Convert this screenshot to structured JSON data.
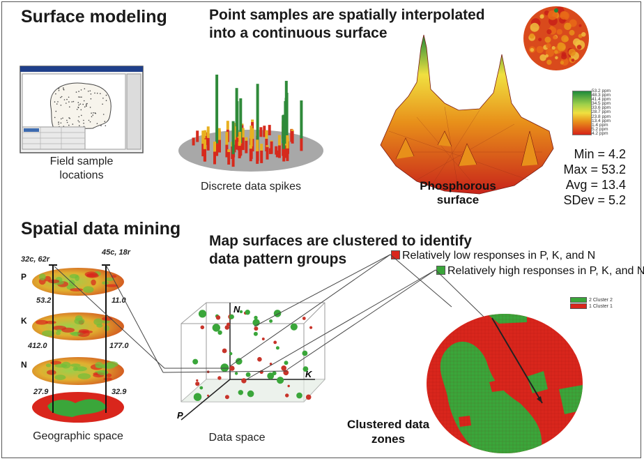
{
  "section1": {
    "title": "Surface modeling",
    "subtitle_line1": "Point samples are spatially interpolated",
    "subtitle_line2": "into a continuous surface",
    "caption_field_line1": "Field sample",
    "caption_field_line2": "locations",
    "caption_spikes": "Discrete data spikes",
    "caption_surface_line1": "Phosphorous",
    "caption_surface_line2": "surface",
    "legend_ticks": [
      "53.2 ppm",
      "48.3 ppm",
      "41.4 ppm",
      "34.5 ppm",
      "33.6 ppm",
      "28.7 ppm",
      "23.8 ppm",
      "13.4 ppm",
      "1.4 ppm",
      "5.2 ppm",
      "4.2 ppm"
    ],
    "stats": {
      "min": "Min = 4.2",
      "max": "Max = 53.2",
      "avg": "Avg = 13.4",
      "sdev": "SDev = 5.2"
    }
  },
  "section2": {
    "title": "Spatial data mining",
    "subtitle_line1": "Map surfaces are clustered to identify",
    "subtitle_line2": "data pattern groups",
    "legend_low": "Relatively low responses in P, K, and N",
    "legend_high": "Relatively high responses in P, K, and N",
    "cluster_legend": [
      "2 Cluster 2",
      "1 Cluster 1"
    ],
    "layers": [
      "P",
      "K",
      "N"
    ],
    "point_left_label": "32c, 62r",
    "point_right_label": "45c, 18r",
    "values_left": [
      "53.2",
      "412.0",
      "27.9"
    ],
    "values_right": [
      "11.0",
      "177.0",
      "32.9"
    ],
    "axes": [
      "N",
      "K",
      "P"
    ],
    "caption_geo": "Geographic space",
    "caption_data": "Data space",
    "caption_zones_line1": "Clustered data",
    "caption_zones_line2": "zones"
  },
  "colors": {
    "low": "#d9261c",
    "high": "#3aa63a",
    "gradient_top": "#1e8a3a",
    "gradient_mid": "#f0e040",
    "gradient_bottom": "#d62318"
  }
}
